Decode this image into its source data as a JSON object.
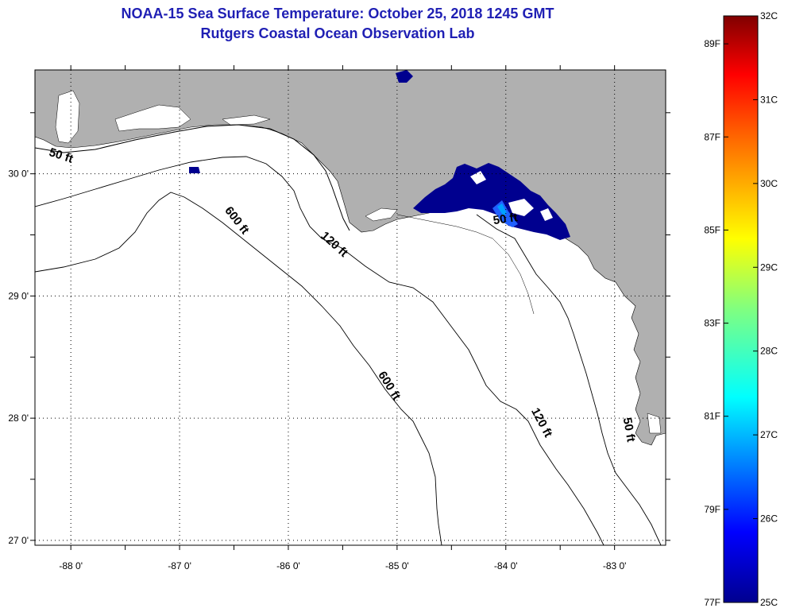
{
  "title": {
    "line1": "NOAA-15 Sea Surface Temperature:  October 25, 2018 1245 GMT",
    "line2": "Rutgers Coastal Ocean Observation Lab"
  },
  "map": {
    "lon_range": [
      -88.33,
      -82.53
    ],
    "lat_range": [
      26.96,
      30.85
    ],
    "lon_ticks": [
      {
        "value": -88,
        "label": "-88 0'"
      },
      {
        "value": -87,
        "label": "-87 0'"
      },
      {
        "value": -86,
        "label": "-86 0'"
      },
      {
        "value": -85,
        "label": "-85 0'"
      },
      {
        "value": -84,
        "label": "-84 0'"
      },
      {
        "value": -83,
        "label": "-83 0'"
      }
    ],
    "lat_ticks": [
      {
        "value": 30,
        "label": "30 0'"
      },
      {
        "value": 29,
        "label": "29 0'"
      },
      {
        "value": 28,
        "label": "28 0'"
      },
      {
        "value": 27,
        "label": "27 0'"
      }
    ],
    "contour_labels": [
      {
        "text": "50 ft",
        "lon": -88.1,
        "lat": 30.12,
        "angle": 18
      },
      {
        "text": "600 ft",
        "lon": -86.5,
        "lat": 29.6,
        "angle": 52
      },
      {
        "text": "120 ft",
        "lon": -85.6,
        "lat": 29.4,
        "angle": 42
      },
      {
        "text": "50 ft",
        "lon": -84.0,
        "lat": 29.6,
        "angle": -8
      },
      {
        "text": "600 ft",
        "lon": -85.1,
        "lat": 28.25,
        "angle": 58
      },
      {
        "text": "120 ft",
        "lon": -83.7,
        "lat": 27.95,
        "angle": 62
      },
      {
        "text": "50 ft",
        "lon": -82.9,
        "lat": 27.9,
        "angle": 80
      }
    ],
    "grid": true,
    "land_color": "#b0b0b0",
    "ocean_color": "#ffffff",
    "sst_color": "#00008f"
  },
  "colorbar": {
    "celsius_labels": [
      "32C",
      "31C",
      "30C",
      "29C",
      "28C",
      "27C",
      "26C",
      "25C"
    ],
    "fahrenheit_labels": [
      "89F",
      "87F",
      "85F",
      "83F",
      "81F",
      "79F",
      "77F"
    ],
    "range_c": [
      25,
      32
    ],
    "colors": [
      "#00008f",
      "#0000ff",
      "#0080ff",
      "#00ffff",
      "#80ff80",
      "#ffff00",
      "#ff8000",
      "#ff0000",
      "#800000"
    ]
  }
}
